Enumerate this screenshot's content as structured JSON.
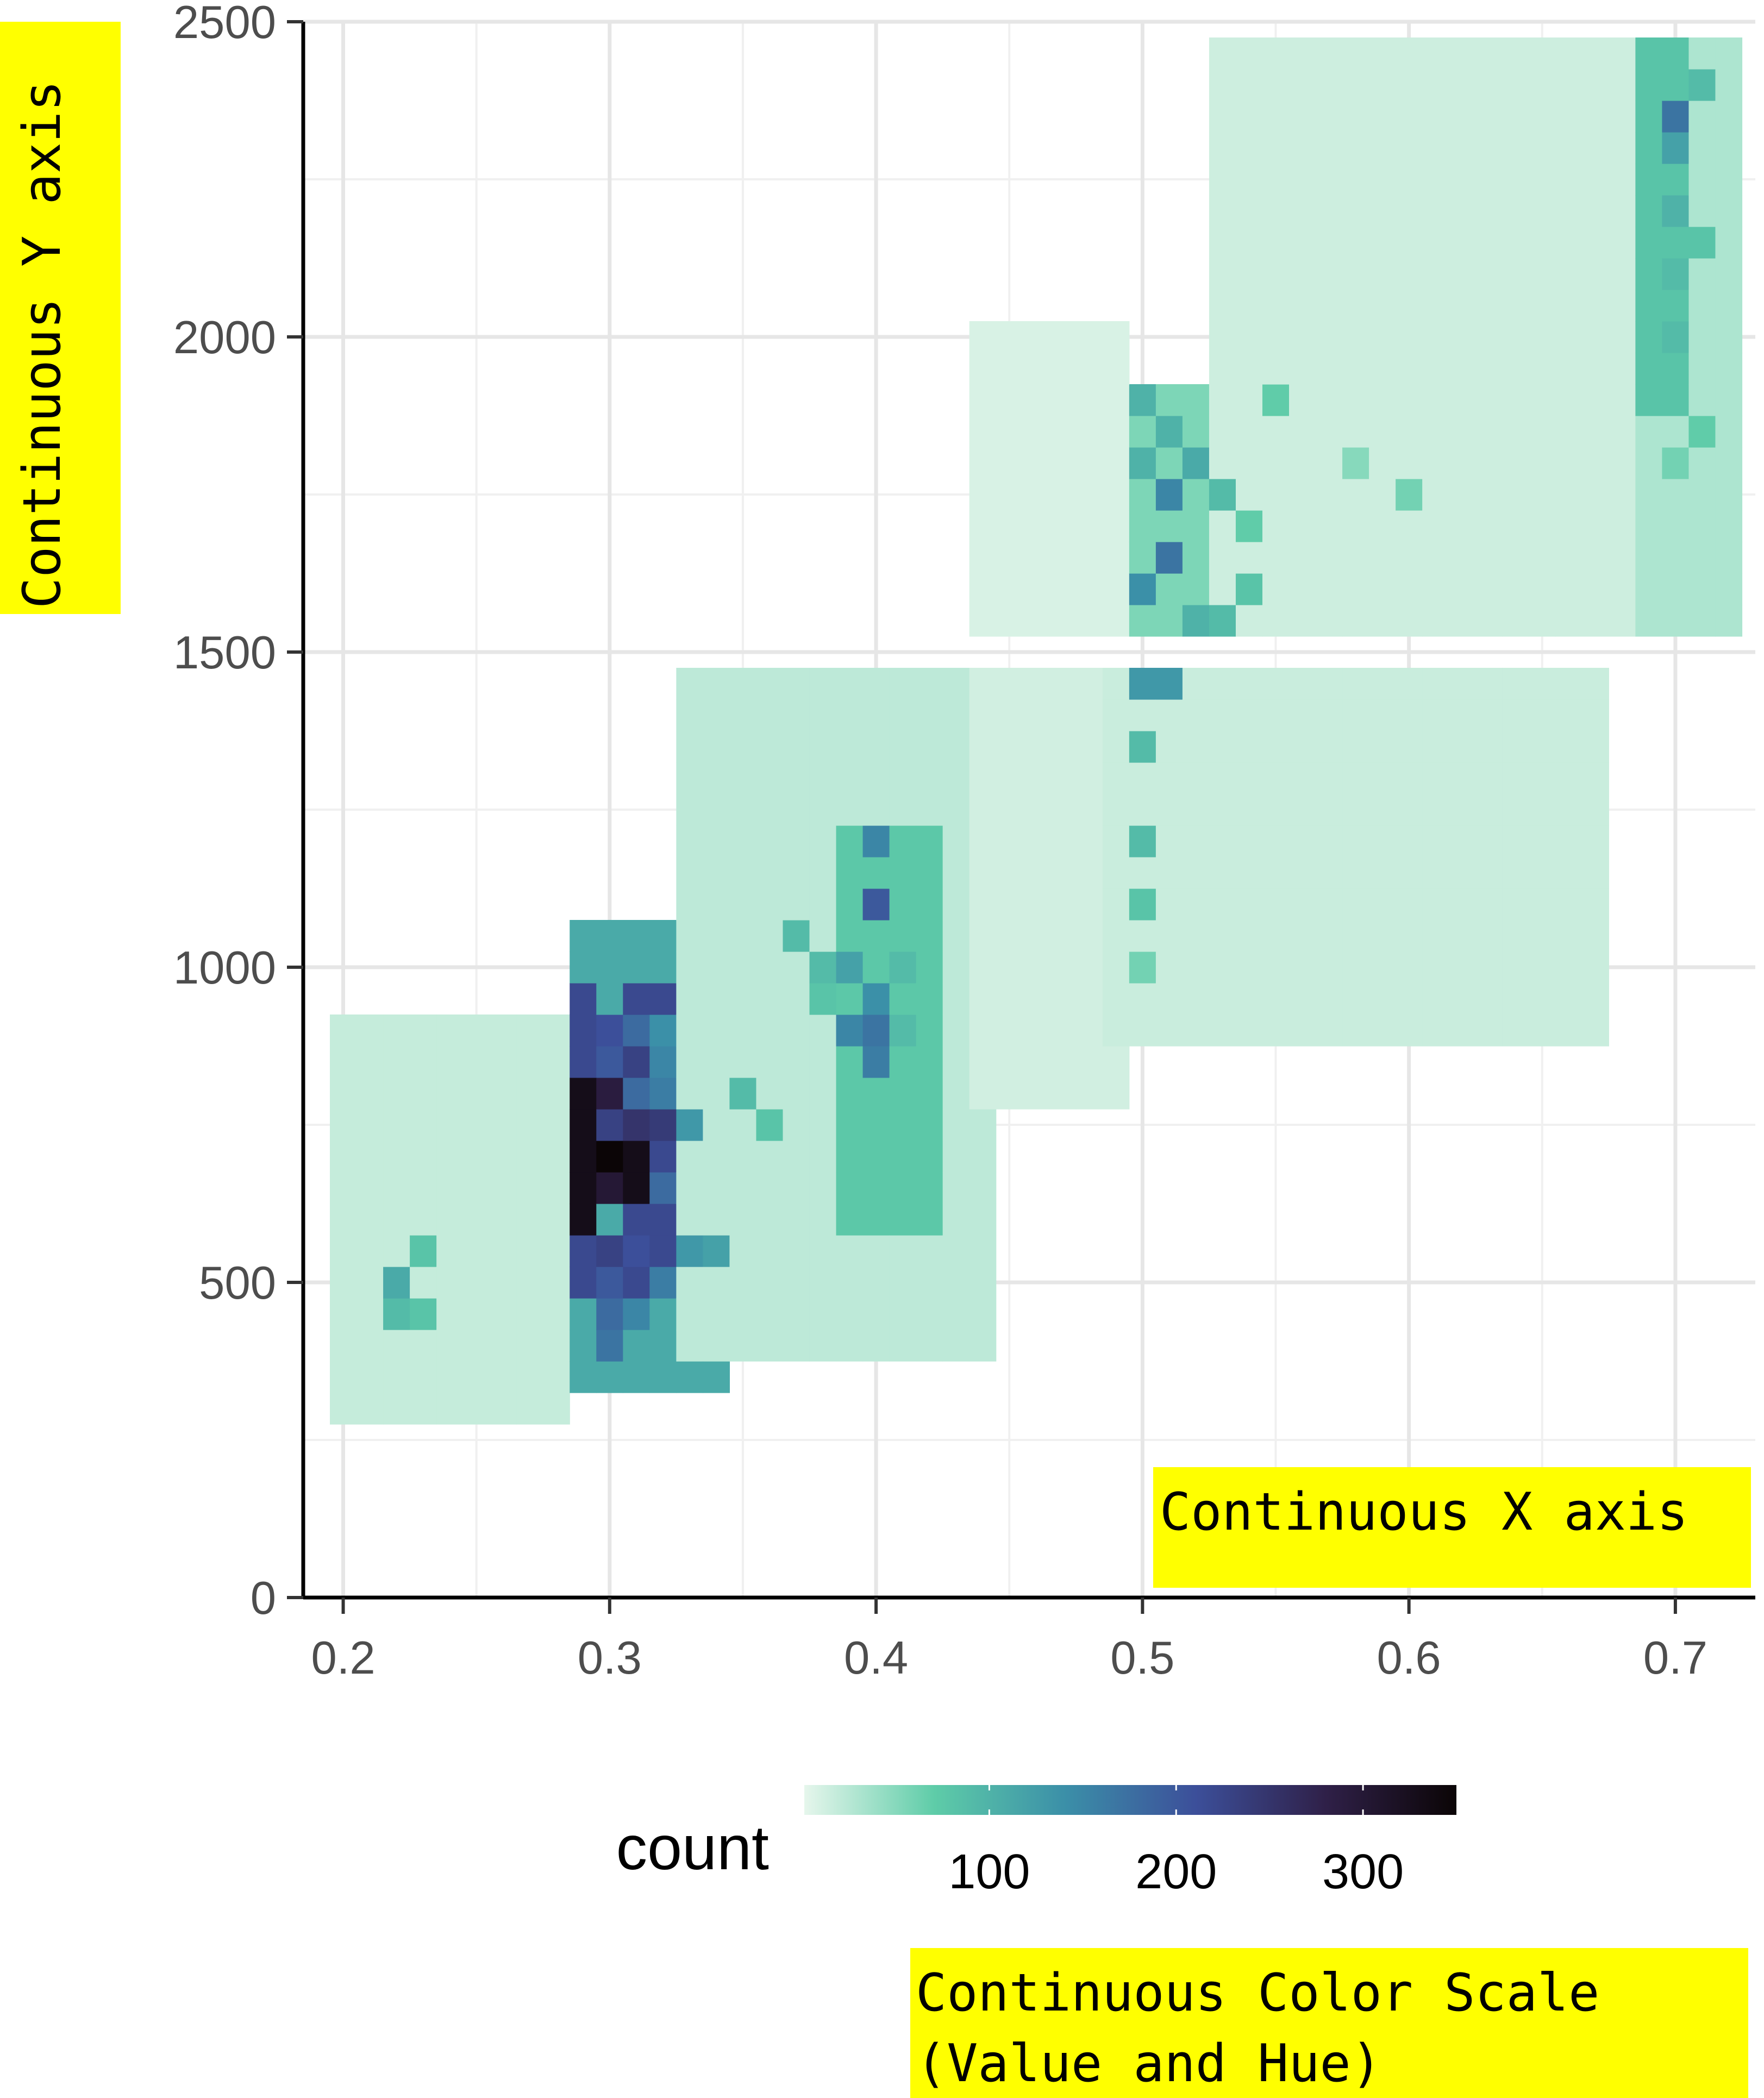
{
  "annotations": {
    "y_note": "Continuous Y axis",
    "x_note": "Continuous X axis",
    "color_note_line1": "Continuous Color Scale",
    "color_note_line2": "(Value and Hue)",
    "highlight_color": "#ffff00"
  },
  "legend": {
    "title": "count",
    "ticks": [
      100,
      200,
      300
    ],
    "range": [
      1,
      350
    ],
    "colors": [
      "#e6f6ec",
      "#5ecca8",
      "#3b8fa8",
      "#3c4f9a",
      "#2f2048",
      "#0b0506"
    ]
  },
  "chart_data": {
    "type": "heatmap",
    "title": "",
    "xlabel": "",
    "ylabel": "",
    "xlim": [
      0.185,
      0.73
    ],
    "ylim": [
      0,
      2500
    ],
    "x_ticks": [
      0.2,
      0.3,
      0.4,
      0.5,
      0.6,
      0.7
    ],
    "y_ticks": [
      0,
      500,
      1000,
      1500,
      2000,
      2500
    ],
    "grid": true,
    "legend_position": "bottom",
    "bin_width_x": 0.01,
    "bin_height_y": 50,
    "regions": [
      {
        "x": [
          0.195,
          0.28
        ],
        "y": [
          300,
          900
        ],
        "count": 18
      },
      {
        "x": [
          0.29,
          0.34
        ],
        "y": [
          350,
          1050
        ],
        "count": 110
      },
      {
        "x": [
          0.295,
          0.33
        ],
        "y": [
          500,
          950
        ],
        "count": 220
      },
      {
        "x": [
          0.295,
          0.31
        ],
        "y": [
          600,
          800
        ],
        "count": 330
      },
      {
        "x": [
          0.33,
          0.44
        ],
        "y": [
          400,
          1450
        ],
        "count": 22
      },
      {
        "x": [
          0.39,
          0.42
        ],
        "y": [
          600,
          1200
        ],
        "count": 75
      },
      {
        "x": [
          0.44,
          0.49
        ],
        "y": [
          800,
          1450
        ],
        "count": 12
      },
      {
        "x": [
          0.49,
          0.67
        ],
        "y": [
          900,
          1450
        ],
        "count": 16
      },
      {
        "x": [
          0.49,
          0.53
        ],
        "y": [
          1550,
          1900
        ],
        "count": 55
      },
      {
        "x": [
          0.53,
          0.68
        ],
        "y": [
          1550,
          2450
        ],
        "count": 14
      },
      {
        "x": [
          0.44,
          0.49
        ],
        "y": [
          1550,
          2000
        ],
        "count": 8
      },
      {
        "x": [
          0.69,
          0.72
        ],
        "y": [
          1550,
          2450
        ],
        "count": 30
      },
      {
        "x": [
          0.69,
          0.7
        ],
        "y": [
          1900,
          2450
        ],
        "count": 80
      }
    ],
    "cells": [
      [
        0.3,
        700,
        350
      ],
      [
        0.31,
        700,
        330
      ],
      [
        0.3,
        650,
        300
      ],
      [
        0.3,
        800,
        290
      ],
      [
        0.31,
        750,
        250
      ],
      [
        0.31,
        850,
        230
      ],
      [
        0.3,
        750,
        230
      ],
      [
        0.3,
        900,
        210
      ],
      [
        0.31,
        600,
        220
      ],
      [
        0.31,
        550,
        210
      ],
      [
        0.3,
        550,
        230
      ],
      [
        0.3,
        500,
        200
      ],
      [
        0.32,
        750,
        240
      ],
      [
        0.32,
        650,
        180
      ],
      [
        0.3,
        850,
        200
      ],
      [
        0.3,
        950,
        110
      ],
      [
        0.3,
        400,
        170
      ],
      [
        0.3,
        450,
        180
      ],
      [
        0.31,
        450,
        150
      ],
      [
        0.32,
        500,
        160
      ],
      [
        0.32,
        850,
        150
      ],
      [
        0.33,
        750,
        130
      ],
      [
        0.33,
        550,
        130
      ],
      [
        0.34,
        550,
        120
      ],
      [
        0.32,
        900,
        140
      ],
      [
        0.31,
        900,
        180
      ],
      [
        0.31,
        800,
        180
      ],
      [
        0.32,
        800,
        160
      ],
      [
        0.4,
        1100,
        200
      ],
      [
        0.4,
        1200,
        150
      ],
      [
        0.4,
        900,
        170
      ],
      [
        0.4,
        850,
        160
      ],
      [
        0.39,
        900,
        150
      ],
      [
        0.4,
        950,
        140
      ],
      [
        0.39,
        1000,
        120
      ],
      [
        0.51,
        1650,
        170
      ],
      [
        0.5,
        1600,
        140
      ],
      [
        0.51,
        1750,
        150
      ],
      [
        0.5,
        1450,
        130
      ],
      [
        0.51,
        1450,
        130
      ],
      [
        0.7,
        2350,
        170
      ],
      [
        0.7,
        2300,
        120
      ],
      [
        0.71,
        2400,
        90
      ],
      [
        0.52,
        1550,
        100
      ],
      [
        0.52,
        1800,
        110
      ],
      [
        0.51,
        1850,
        100
      ],
      [
        0.5,
        1800,
        100
      ],
      [
        0.5,
        1900,
        100
      ],
      [
        0.22,
        500,
        110
      ],
      [
        0.23,
        550,
        80
      ],
      [
        0.22,
        450,
        90
      ],
      [
        0.23,
        450,
        80
      ],
      [
        0.7,
        2200,
        100
      ],
      [
        0.7,
        2100,
        90
      ],
      [
        0.71,
        2150,
        80
      ],
      [
        0.7,
        2000,
        90
      ],
      [
        0.5,
        1200,
        90
      ],
      [
        0.5,
        1100,
        80
      ],
      [
        0.5,
        1350,
        90
      ],
      [
        0.38,
        1000,
        90
      ],
      [
        0.38,
        950,
        80
      ],
      [
        0.35,
        800,
        90
      ],
      [
        0.36,
        750,
        80
      ],
      [
        0.41,
        1000,
        90
      ],
      [
        0.41,
        900,
        90
      ],
      [
        0.37,
        1050,
        90
      ],
      [
        0.53,
        1550,
        90
      ],
      [
        0.5,
        1000,
        60
      ],
      [
        0.54,
        1600,
        80
      ],
      [
        0.54,
        1700,
        70
      ],
      [
        0.53,
        1750,
        90
      ],
      [
        0.55,
        1900,
        70
      ],
      [
        0.6,
        1750,
        60
      ],
      [
        0.58,
        1800,
        50
      ],
      [
        0.7,
        1800,
        60
      ],
      [
        0.71,
        1850,
        70
      ]
    ]
  }
}
